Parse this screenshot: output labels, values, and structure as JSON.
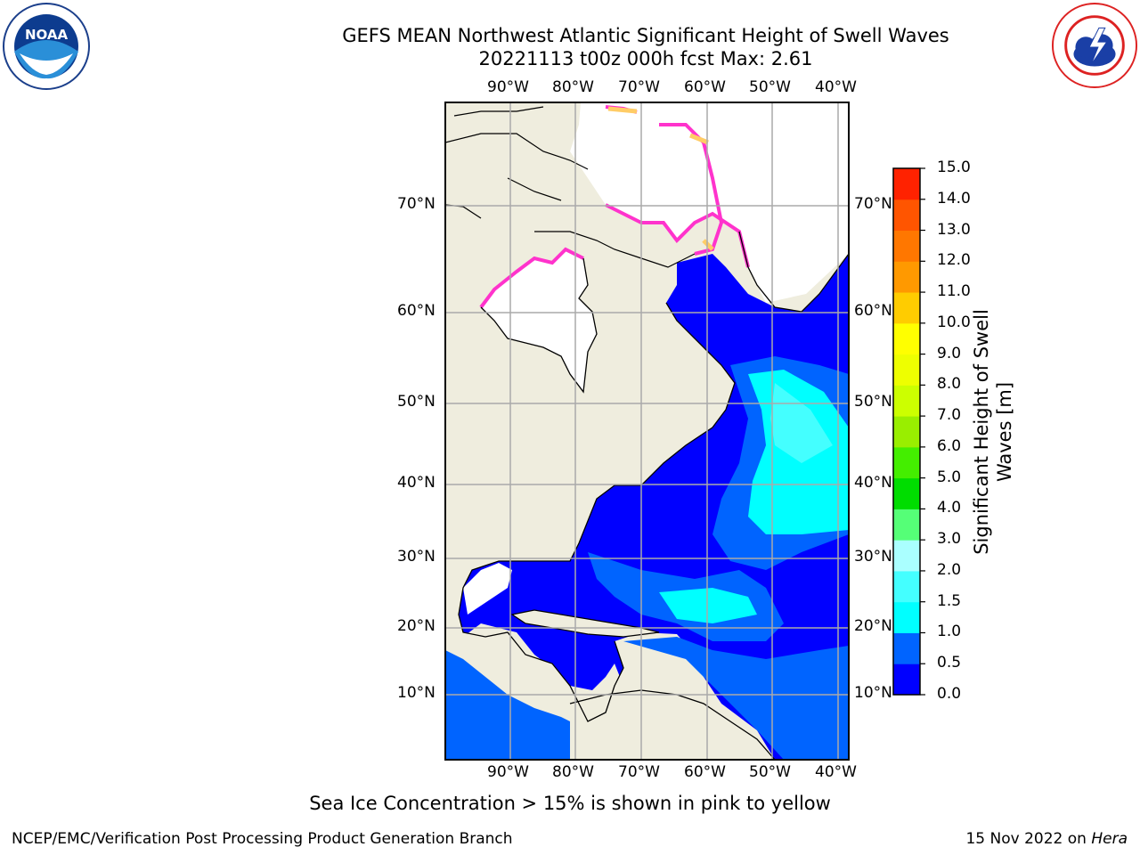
{
  "header": {
    "title_line1": "GEFS MEAN Northwest Atlantic Significant Height of Swell Waves",
    "title_line2": "20221113 t00z 000h fcst   Max: 2.61"
  },
  "logos": {
    "left": "NOAA",
    "left_ring_text": "NATIONAL OCEANIC AND ATMOSPHERIC ADMINISTRATION · U.S. DEPARTMENT OF COMMERCE",
    "right_ring_text": "NATIONAL WEATHER SERVICE"
  },
  "map": {
    "lon_labels": [
      "90°W",
      "80°W",
      "70°W",
      "60°W",
      "50°W",
      "40°W"
    ],
    "lat_labels": [
      "70°N",
      "60°N",
      "50°N",
      "40°N",
      "30°N",
      "20°N",
      "10°N"
    ],
    "colors": {
      "land": "#efedde",
      "ocean_low": "#0000ff",
      "ice_pink": "#ff33cc",
      "ice_yellow": "#ffcc66"
    }
  },
  "colorbar": {
    "title_line1": "Significant Height of Swell",
    "title_line2": "Waves [m]",
    "ticks": [
      "0.0",
      "0.5",
      "1.0",
      "1.5",
      "2.0",
      "3.0",
      "4.0",
      "5.0",
      "6.0",
      "7.0",
      "8.0",
      "9.0",
      "10.0",
      "11.0",
      "12.0",
      "13.0",
      "14.0",
      "15.0"
    ],
    "colors": [
      "#0000ff",
      "#0064ff",
      "#00ffff",
      "#44ffff",
      "#aaffff",
      "#55ff77",
      "#00dd00",
      "#44ee00",
      "#99ee00",
      "#ccff00",
      "#eeff00",
      "#ffff00",
      "#ffcc00",
      "#ff9900",
      "#ff7700",
      "#ff5500",
      "#ff2200"
    ]
  },
  "caption": "Sea Ice Concentration > 15% is shown in pink to yellow",
  "footer": {
    "left": "NCEP/EMC/Verification Post Processing Product Generation Branch",
    "right_date": "15 Nov 2022 on ",
    "right_host": "Hera"
  }
}
